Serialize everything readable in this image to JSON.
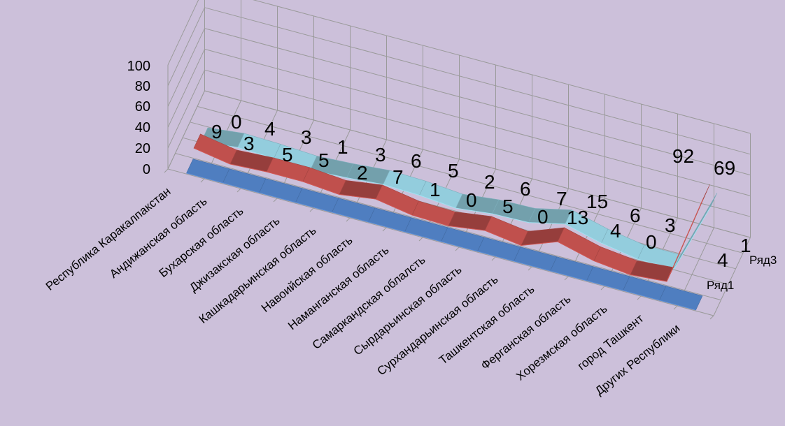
{
  "chart_data": {
    "type": "line-3d",
    "title": "",
    "ylim": [
      0,
      100
    ],
    "yticks": [
      "0",
      "20",
      "40",
      "60",
      "80",
      "100"
    ],
    "grid": true,
    "categories": [
      "Республика Каракалпакстан",
      "Андижанская область",
      "Бухарская область",
      "Джизакская область",
      "Кашкадарьинская область",
      "Навоийская область",
      "Наманганская область",
      "Самаркандская облалсть",
      "Сырдарьинская область",
      "Сурхандарьинская область",
      "Ташкентская область",
      "Ферганская область",
      "Хорезмская область",
      "город Ташкент",
      "Других Республики"
    ],
    "series_axis_labels": [
      "Ряд1",
      "Ряд3"
    ],
    "series": [
      {
        "name": "Ряд1",
        "color": "#4f7ec0",
        "values": [
          0,
          0,
          0,
          0,
          0,
          0,
          0,
          0,
          0,
          0,
          0,
          0,
          0,
          0,
          0
        ]
      },
      {
        "name": "",
        "color": "#c0504d",
        "values": [
          9,
          3,
          5,
          5,
          2,
          7,
          1,
          0,
          5,
          0,
          13,
          4,
          0,
          3,
          92
        ],
        "end_label": "4"
      },
      {
        "name": "Ряд3",
        "color": "#93cddd",
        "values": [
          0,
          4,
          3,
          1,
          3,
          6,
          5,
          2,
          6,
          7,
          15,
          6,
          0,
          0,
          69
        ],
        "end_label": "1"
      }
    ]
  },
  "labels": {
    "ser0": {
      "values": [
        "9",
        "3",
        "5",
        "5",
        "2",
        "7",
        "1",
        "0",
        "5",
        "0",
        "13",
        "4",
        "0",
        "3",
        "92"
      ],
      "end": "4"
    },
    "ser1": {
      "values": [
        "0",
        "4",
        "3",
        "1",
        "3",
        "6",
        "5",
        "2",
        "6",
        "7",
        "15",
        "6",
        "0",
        "",
        "69"
      ],
      "end": "1"
    }
  }
}
